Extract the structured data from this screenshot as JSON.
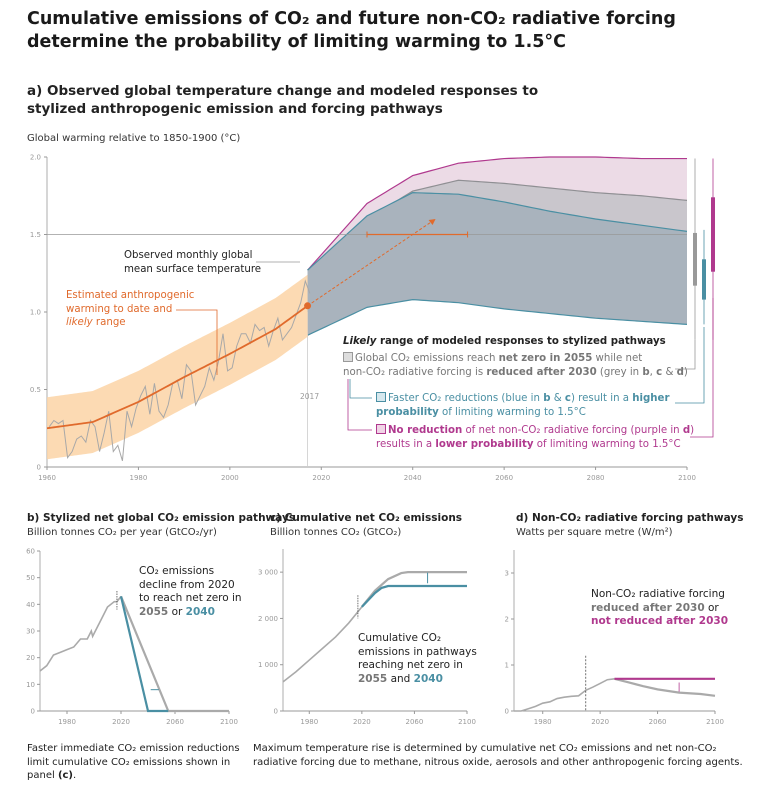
{
  "title": "Cumulative emissions of CO₂ and future non-CO₂ radiative forcing determine the probability of limiting warming to 1.5°C",
  "panel_a": {
    "heading": "a) Observed global temperature change and modeled responses to stylized anthropogenic emission and forcing pathways",
    "ylabel": "Global warming relative to 1850-1900 (°C)",
    "obs_label": [
      "Observed monthly global",
      "mean surface temperature"
    ],
    "anthro_label": [
      "Estimated anthropogenic",
      "warming to date and"
    ],
    "anthro_label_italic": "likely",
    "anthro_label_end": " range",
    "year_marker": "2017",
    "legend_title_italic": "Likely",
    "legend_title": " range of modeled responses to stylized pathways",
    "legend_grey": [
      {
        "t": "Global CO₂ emissions reach "
      },
      {
        "t": "net zero in 2055",
        "b": true
      },
      {
        "t": " while net"
      }
    ],
    "legend_grey2": [
      {
        "t": "non-CO₂ radiative forcing is "
      },
      {
        "t": "reduced after 2030",
        "b": true
      },
      {
        "t": " (grey in "
      },
      {
        "t": "b",
        "b": true
      },
      {
        "t": ", "
      },
      {
        "t": "c",
        "b": true
      },
      {
        "t": " & "
      },
      {
        "t": "d",
        "b": true
      },
      {
        "t": ")"
      }
    ],
    "legend_blue": [
      {
        "t": "Faster CO₂ reductions (blue in "
      },
      {
        "t": "b",
        "b": true
      },
      {
        "t": " & "
      },
      {
        "t": "c",
        "b": true
      },
      {
        "t": ") result in a "
      },
      {
        "t": "higher",
        "b": true
      }
    ],
    "legend_blue2": [
      {
        "t": "probability",
        "b": true
      },
      {
        "t": " of limiting warming to 1.5°C"
      }
    ],
    "legend_purple": [
      {
        "t": "No reduction",
        "b": true
      },
      {
        "t": " of net non-CO₂ radiative forcing (purple in "
      },
      {
        "t": "d",
        "b": true
      },
      {
        "t": ")"
      }
    ],
    "legend_purple2": [
      {
        "t": "results in a "
      },
      {
        "t": "lower probability",
        "b": true
      },
      {
        "t": " of limiting warming to 1.5°C"
      }
    ]
  },
  "chart_data": [
    {
      "id": "a",
      "type": "area",
      "xlim": [
        1960,
        2100
      ],
      "ylim": [
        0,
        2.0
      ],
      "xticks": [
        "1960",
        "1980",
        "2000",
        "2020",
        "2040",
        "2060",
        "2080",
        "2100"
      ],
      "yticks": [
        "0",
        "0.5",
        "1.0",
        "1.5",
        "2.0"
      ],
      "reference_line": 1.5,
      "observed_annual": {
        "x_start": 1960,
        "values": [
          0.26,
          0.3,
          0.28,
          0.3,
          0.06,
          0.1,
          0.18,
          0.2,
          0.16,
          0.3,
          0.26,
          0.1,
          0.22,
          0.36,
          0.1,
          0.14,
          0.04,
          0.36,
          0.26,
          0.38,
          0.46,
          0.52,
          0.34,
          0.54,
          0.36,
          0.32,
          0.4,
          0.54,
          0.56,
          0.44,
          0.66,
          0.62,
          0.4,
          0.46,
          0.52,
          0.64,
          0.56,
          0.68,
          0.86,
          0.62,
          0.64,
          0.78,
          0.86,
          0.86,
          0.8,
          0.92,
          0.88,
          0.9,
          0.78,
          0.88,
          0.96,
          0.82,
          0.86,
          0.9,
          0.98,
          1.06,
          1.2,
          1.12
        ]
      },
      "anthropogenic": {
        "x": [
          1960,
          1970,
          1980,
          1990,
          2000,
          2010,
          2017
        ],
        "y": [
          0.25,
          0.29,
          0.42,
          0.58,
          0.73,
          0.89,
          1.04
        ],
        "likely_range": 0.2
      },
      "projection_arrow": {
        "from": [
          2017,
          1.04
        ],
        "to": [
          2045,
          1.6
        ]
      },
      "crossing_1_5_range": [
        2030,
        2052
      ],
      "bands": {
        "x": [
          2017,
          2030,
          2040,
          2050,
          2060,
          2070,
          2080,
          2090,
          2100
        ],
        "grey": {
          "upper": [
            1.27,
            1.6,
            1.78,
            1.85,
            1.83,
            1.8,
            1.77,
            1.75,
            1.72
          ],
          "lower": [
            0.85,
            1.05,
            1.13,
            1.14,
            1.13,
            1.11,
            1.09,
            1.07,
            1.06
          ]
        },
        "purple": {
          "upper": [
            1.27,
            1.7,
            1.88,
            1.96,
            1.99,
            2.0,
            2.0,
            1.99,
            1.99
          ],
          "lower": [
            0.85,
            1.06,
            1.14,
            1.16,
            1.16,
            1.16,
            1.16,
            1.16,
            1.16
          ]
        },
        "blue": {
          "upper": [
            1.27,
            1.62,
            1.77,
            1.76,
            1.71,
            1.65,
            1.6,
            1.56,
            1.52
          ],
          "lower": [
            0.85,
            1.03,
            1.08,
            1.06,
            1.02,
            0.99,
            0.96,
            0.94,
            0.92
          ]
        }
      },
      "range_bars": [
        {
          "name": "grey",
          "box": [
            1.17,
            1.51
          ],
          "whisker": [
            0.82,
            1.99
          ],
          "color": "#999999"
        },
        {
          "name": "blue",
          "box": [
            1.08,
            1.34
          ],
          "whisker": [
            0.92,
            1.53
          ],
          "color": "#4a8fa3"
        },
        {
          "name": "purple",
          "box": [
            1.26,
            1.74
          ],
          "whisker": [
            0.19,
            1.99
          ],
          "color": "#b0398e"
        }
      ]
    },
    {
      "id": "b",
      "type": "line",
      "title": "b) Stylized net global CO₂ emission pathways",
      "ylabel": "Billion tonnes CO₂ per year (GtCO₂/yr)",
      "xlim": [
        1960,
        2100
      ],
      "ylim": [
        0,
        60
      ],
      "xticks": [
        "1980",
        "2020",
        "2060",
        "2100"
      ],
      "yticks": [
        "0",
        "10",
        "20",
        "30",
        "40",
        "50",
        "60"
      ],
      "historical": {
        "x": [
          1960,
          1965,
          1970,
          1975,
          1980,
          1985,
          1990,
          1995,
          1998,
          1999,
          2000,
          2005,
          2010,
          2015,
          2017,
          2020
        ],
        "y": [
          15,
          17,
          21,
          22,
          23,
          24,
          27,
          27,
          30,
          28,
          29,
          34,
          39,
          41,
          41,
          43
        ]
      },
      "series": [
        {
          "color": "#aaaaaa",
          "x": [
            2020,
            2055,
            2100
          ],
          "y": [
            43,
            0,
            0
          ]
        },
        {
          "color": "#4a8fa3",
          "x": [
            2020,
            2040,
            2055
          ],
          "y": [
            43,
            0,
            0
          ]
        }
      ],
      "annotation": [
        "CO₂ emissions",
        "decline from 2020",
        "to reach net zero in"
      ],
      "annotation_grey": "2055",
      "annotation_or": " or ",
      "annotation_blue": "2040"
    },
    {
      "id": "c",
      "type": "line",
      "title": "c) Cumulative net CO₂ emissions",
      "ylabel": "Billion tonnes CO₂ (GtCO₂)",
      "xlim": [
        1960,
        2100
      ],
      "ylim": [
        0,
        3500
      ],
      "xticks": [
        "1980",
        "2020",
        "2060",
        "2100"
      ],
      "yticks": [
        "0",
        "1 000",
        "2 000",
        "3 000"
      ],
      "historical": {
        "x": [
          1960,
          1970,
          1980,
          1990,
          2000,
          2010,
          2020
        ],
        "y": [
          630,
          850,
          1100,
          1350,
          1600,
          1900,
          2250
        ]
      },
      "series": [
        {
          "color": "#aaaaaa",
          "x": [
            2020,
            2030,
            2040,
            2050,
            2055,
            2100
          ],
          "y": [
            2250,
            2600,
            2850,
            2980,
            3000,
            3000
          ]
        },
        {
          "color": "#4a8fa3",
          "x": [
            2020,
            2030,
            2035,
            2040,
            2100
          ],
          "y": [
            2250,
            2550,
            2660,
            2700,
            2700
          ]
        }
      ],
      "annotation": [
        "Cumulative CO₂",
        "emissions in pathways",
        "reaching net zero in"
      ],
      "annotation_grey": "2055",
      "annotation_and": " and ",
      "annotation_blue": "2040"
    },
    {
      "id": "d",
      "type": "line",
      "title": "d) Non-CO₂ radiative forcing pathways",
      "ylabel": "Watts per square metre (W/m²)",
      "xlim": [
        1960,
        2100
      ],
      "ylim": [
        0,
        3.5
      ],
      "xticks": [
        "1980",
        "2020",
        "2060",
        "2100"
      ],
      "yticks": [
        "0",
        "1",
        "2",
        "3"
      ],
      "historical": {
        "x": [
          1960,
          1965,
          1970,
          1975,
          1980,
          1985,
          1990,
          1995,
          2000,
          2005,
          2010,
          2015,
          2020,
          2025,
          2030
        ],
        "y": [
          0,
          0,
          0.05,
          0.1,
          0.17,
          0.2,
          0.27,
          0.3,
          0.32,
          0.33,
          0.45,
          0.52,
          0.6,
          0.68,
          0.7
        ]
      },
      "series": [
        {
          "color": "#aaaaaa",
          "x": [
            2030,
            2040,
            2050,
            2060,
            2075,
            2090,
            2100
          ],
          "y": [
            0.7,
            0.62,
            0.54,
            0.47,
            0.4,
            0.37,
            0.33
          ]
        },
        {
          "color": "#b0398e",
          "x": [
            2030,
            2100
          ],
          "y": [
            0.7,
            0.7
          ]
        }
      ],
      "annotation": "Non-CO₂ radiative forcing",
      "annotation_grey": "reduced after 2030",
      "annotation_or": " or",
      "annotation_purple": "not reduced after 2030"
    }
  ],
  "captions": {
    "left": "Faster immediate CO₂ emission reductions limit cumulative CO₂ emissions shown in panel ",
    "left_bold": "(c)",
    "left_end": ".",
    "right": "Maximum temperature rise is determined by cumulative net CO₂ emissions and net non-CO₂ radiative forcing due to methane, nitrous oxide, aerosols and other anthropogenic forcing agents."
  },
  "colors": {
    "grey": "#999999",
    "blue": "#4a8fa3",
    "purple": "#b0398e",
    "orange": "#e06a2c",
    "orange_band": "#fbd3a6"
  }
}
